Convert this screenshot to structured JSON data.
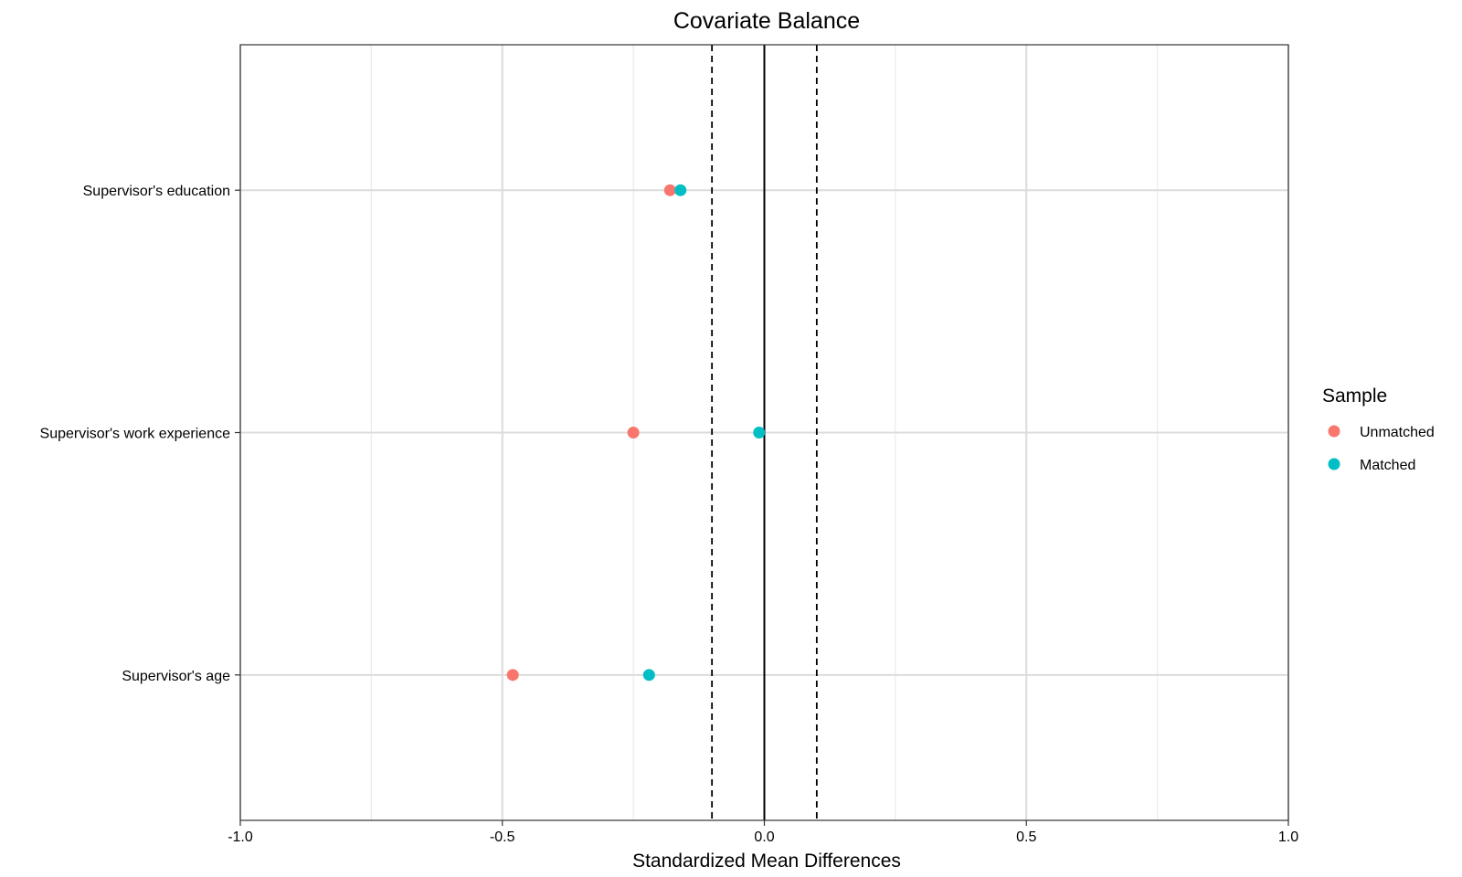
{
  "chart_data": {
    "type": "scatter",
    "title": "Covariate Balance",
    "xlabel": "Standardized Mean Differences",
    "ylabel": "",
    "xlim": [
      -1.0,
      1.0
    ],
    "x_ticks": [
      -1.0,
      -0.5,
      0.0,
      0.5,
      1.0
    ],
    "x_tick_labels": [
      "-1.0",
      "-0.5",
      "0.0",
      "0.5",
      "1.0"
    ],
    "minor_gridlines_x": [
      -0.75,
      -0.25,
      0.25,
      0.75
    ],
    "categories": [
      "Supervisor's education",
      "Supervisor's work experience",
      "Supervisor's age"
    ],
    "threshold_lines": [
      -0.1,
      0.1
    ],
    "zero_line": 0.0,
    "grid": true,
    "legend": {
      "title": "Sample",
      "placement": "right"
    },
    "series": [
      {
        "name": "Unmatched",
        "color": "#F8766D",
        "values": [
          -0.18,
          -0.25,
          -0.48
        ]
      },
      {
        "name": "Matched",
        "color": "#00BFC4",
        "values": [
          -0.16,
          -0.01,
          -0.22
        ]
      }
    ]
  }
}
